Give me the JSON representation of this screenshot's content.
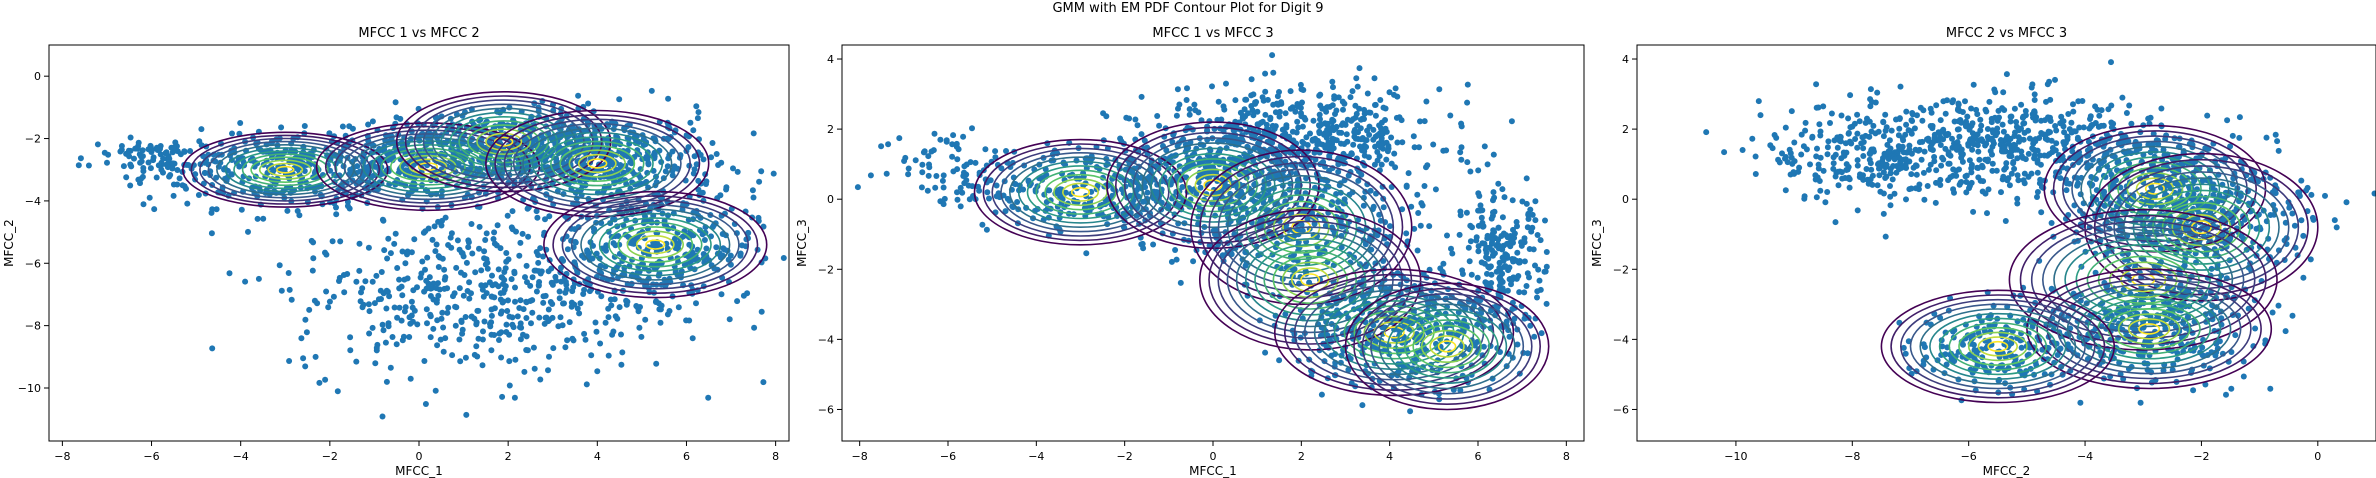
{
  "figure_title": "GMM with EM PDF Contour Plot for Digit 9",
  "chart_data": [
    {
      "type": "scatter",
      "title": "MFCC 1 vs MFCC 2",
      "xlabel": "MFCC_1",
      "ylabel": "MFCC_2",
      "xlim": [
        -8.3,
        8.3
      ],
      "ylim": [
        -11.7,
        1.0
      ],
      "xticks": [
        -8,
        -6,
        -4,
        -2,
        0,
        2,
        4,
        6,
        8
      ],
      "yticks": [
        0,
        -2,
        -4,
        -6,
        -8,
        -10
      ],
      "grid": false,
      "point_color": "#1f77b4",
      "points_description_clusters": [
        {
          "cx": -3.0,
          "cy": -3.0,
          "sx": 1.6,
          "sy": 0.6,
          "n": 330
        },
        {
          "cx": 0.0,
          "cy": -2.8,
          "sx": 1.2,
          "sy": 0.6,
          "n": 260
        },
        {
          "cx": 2.0,
          "cy": -2.2,
          "sx": 1.2,
          "sy": 0.6,
          "n": 330
        },
        {
          "cx": 4.1,
          "cy": -2.8,
          "sx": 1.3,
          "sy": 0.8,
          "n": 450
        },
        {
          "cx": 5.3,
          "cy": -5.5,
          "sx": 1.1,
          "sy": 0.8,
          "n": 300
        },
        {
          "cx": 1.5,
          "cy": -7.0,
          "sx": 2.2,
          "sy": 1.3,
          "n": 520
        },
        {
          "cx": -6.0,
          "cy": -2.6,
          "sx": 0.7,
          "sy": 0.3,
          "n": 80
        }
      ],
      "gmm_components": [
        {
          "mx": -3.0,
          "my": -3.0,
          "rx": 2.3,
          "ry": 1.2
        },
        {
          "mx": 0.2,
          "my": -2.9,
          "rx": 2.5,
          "ry": 1.4
        },
        {
          "mx": 1.9,
          "my": -2.1,
          "rx": 2.4,
          "ry": 1.6
        },
        {
          "mx": 4.0,
          "my": -2.8,
          "rx": 2.5,
          "ry": 1.7
        },
        {
          "mx": 5.3,
          "my": -5.4,
          "rx": 2.5,
          "ry": 1.7
        }
      ]
    },
    {
      "type": "scatter",
      "title": "MFCC 1 vs MFCC 3",
      "xlabel": "MFCC_1",
      "ylabel": "MFCC_3",
      "xlim": [
        -8.4,
        8.4
      ],
      "ylim": [
        -6.9,
        4.4
      ],
      "xticks": [
        -8,
        -6,
        -4,
        -2,
        0,
        2,
        4,
        6,
        8
      ],
      "yticks": [
        4,
        2,
        0,
        -2,
        -4,
        -6
      ],
      "grid": false,
      "point_color": "#1f77b4",
      "points_description_clusters": [
        {
          "cx": -3.0,
          "cy": 0.3,
          "sx": 1.4,
          "sy": 0.6,
          "n": 260
        },
        {
          "cx": 0.0,
          "cy": 0.6,
          "sx": 1.2,
          "sy": 0.8,
          "n": 330
        },
        {
          "cx": 2.0,
          "cy": 1.8,
          "sx": 1.6,
          "sy": 0.7,
          "n": 500
        },
        {
          "cx": 2.0,
          "cy": -0.8,
          "sx": 1.4,
          "sy": 0.9,
          "n": 330
        },
        {
          "cx": 4.2,
          "cy": -3.7,
          "sx": 1.3,
          "sy": 0.8,
          "n": 420
        },
        {
          "cx": 6.5,
          "cy": -1.8,
          "sx": 0.5,
          "sy": 1.0,
          "n": 220
        },
        {
          "cx": -6.0,
          "cy": 1.0,
          "sx": 0.8,
          "sy": 0.6,
          "n": 60
        }
      ],
      "gmm_components": [
        {
          "mx": -3.0,
          "my": 0.2,
          "rx": 2.4,
          "ry": 1.5
        },
        {
          "mx": 0.0,
          "my": 0.4,
          "rx": 2.4,
          "ry": 1.8
        },
        {
          "mx": 2.0,
          "my": -0.8,
          "rx": 2.5,
          "ry": 2.2
        },
        {
          "mx": 2.2,
          "my": -2.3,
          "rx": 2.5,
          "ry": 2.0
        },
        {
          "mx": 4.1,
          "my": -3.8,
          "rx": 2.7,
          "ry": 1.8
        },
        {
          "mx": 5.3,
          "my": -4.2,
          "rx": 2.3,
          "ry": 1.8
        }
      ]
    },
    {
      "type": "scatter",
      "title": "MFCC 2 vs MFCC 3",
      "xlabel": "MFCC_2",
      "ylabel": "MFCC_3",
      "xlim": [
        -11.7,
        1.0
      ],
      "ylim": [
        -6.9,
        4.4
      ],
      "xticks": [
        -10,
        -8,
        -6,
        -4,
        -2,
        0
      ],
      "yticks": [
        4,
        2,
        0,
        -2,
        -4,
        -6
      ],
      "grid": false,
      "point_color": "#1f77b4",
      "points_description_clusters": [
        {
          "cx": -7.5,
          "cy": 1.3,
          "sx": 1.0,
          "sy": 0.7,
          "n": 320
        },
        {
          "cx": -5.0,
          "cy": 1.6,
          "sx": 1.2,
          "sy": 0.7,
          "n": 420
        },
        {
          "cx": -2.8,
          "cy": 0.4,
          "sx": 1.0,
          "sy": 0.8,
          "n": 350
        },
        {
          "cx": -2.0,
          "cy": -0.8,
          "sx": 0.9,
          "sy": 0.8,
          "n": 300
        },
        {
          "cx": -2.9,
          "cy": -3.6,
          "sx": 0.9,
          "sy": 0.8,
          "n": 350
        },
        {
          "cx": -5.5,
          "cy": -4.2,
          "sx": 0.7,
          "sy": 0.6,
          "n": 200
        }
      ],
      "gmm_components": [
        {
          "mx": -2.8,
          "my": 0.3,
          "rx": 1.9,
          "ry": 1.8
        },
        {
          "mx": -2.0,
          "my": -0.8,
          "rx": 2.0,
          "ry": 2.1
        },
        {
          "mx": -3.0,
          "my": -2.3,
          "rx": 2.3,
          "ry": 2.0
        },
        {
          "mx": -2.9,
          "my": -3.7,
          "rx": 2.1,
          "ry": 1.7
        },
        {
          "mx": -5.5,
          "my": -4.2,
          "rx": 2.0,
          "ry": 1.6
        }
      ]
    }
  ]
}
